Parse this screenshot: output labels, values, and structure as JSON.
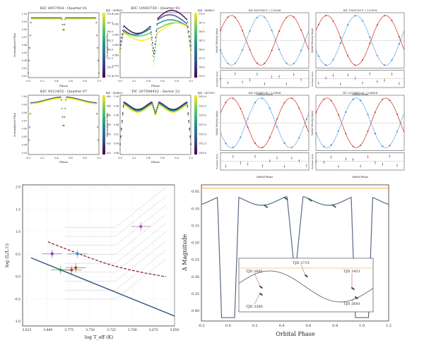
{
  "panels": {
    "lc1": {
      "title": "KIC 8957954 - Quarter 01",
      "ylabel": "Normalized Flux",
      "xlabel": "Phase",
      "cbar_label": "BJD - 2454833",
      "cbar_ticks": [
        "170.0",
        "167.5",
        "165.0",
        "162.5",
        "160.0",
        "157.5",
        "155.0",
        "152.5"
      ],
      "xticks": [
        "0.0",
        "0.2",
        "0.4",
        "0.6",
        "0.8",
        "1.0"
      ],
      "yticks": [
        "1.00",
        "0.99",
        "0.98",
        "0.97",
        "0.96",
        "0.95",
        "0.94",
        "0.93",
        "0.92"
      ]
    },
    "lc2": {
      "title": "KIC 10593759 - Quarter 01",
      "ylabel": "Normalized Flux",
      "xlabel": "Phase",
      "cbar_label": "BJD - 2454833",
      "cbar_ticks": [
        "170.0",
        "167.5",
        "165.0",
        "162.5",
        "160.0",
        "157.5",
        "155.0",
        "152.5"
      ],
      "xticks": [
        "0.0",
        "0.2",
        "0.4",
        "0.6",
        "0.8",
        "1.0"
      ],
      "yticks": [
        "1.000",
        "0.995",
        "0.990",
        "0.985",
        "0.980",
        "0.975",
        "0.970"
      ]
    },
    "lc3": {
      "title": "KIC 9312455 - Quarter 07",
      "ylabel": "Normalized Flux",
      "xlabel": "Phase",
      "cbar_label": "BJD - 2454833",
      "cbar_ticks": [
        "650",
        "645",
        "640",
        "635",
        "630",
        "625",
        "620"
      ],
      "xticks": [
        "0.0",
        "0.2",
        "0.4",
        "0.6",
        "0.8",
        "1.0"
      ],
      "yticks": [
        "1.00",
        "0.99",
        "0.98",
        "0.97",
        "0.96",
        "0.95",
        "0.94",
        "0.93"
      ]
    },
    "lc4": {
      "title": "TIC 207598432 - Sector 22",
      "ylabel": "Normalized Flux",
      "xlabel": "Phase",
      "cbar_label": "BJD - 2457000",
      "cbar_ticks": [
        "1925.0",
        "1922.5",
        "1920.0",
        "1917.5",
        "1915.0",
        "1912.5",
        "1910.0"
      ],
      "xticks": [
        "0.0",
        "0.2",
        "0.4",
        "0.6",
        "0.8",
        "1.0"
      ],
      "yticks": [
        "1.00",
        "0.98",
        "0.96",
        "0.94",
        "0.92",
        "0.90",
        "0.88"
      ]
    },
    "rv": {
      "titles": [
        "KIC 8957954  P = 1.5559d",
        "KIC 10593759  P = 1.0357d",
        "KIC 9312455  P = 1.2049d",
        "TIC 207598432  P = 0.8461d"
      ],
      "xlabel": "Orbital Phase",
      "ylabel_top": "Radial Velocity (km/s)",
      "ylabel_bot": "Residuals (km/s)"
    },
    "hr": {
      "xlabel": "log T_eff (K)",
      "ylabel": "log (L/L☉)",
      "xticks": [
        "3.825",
        "3.800",
        "3.775",
        "3.750",
        "3.725",
        "3.700",
        "3.675",
        "3.650"
      ],
      "yticks": [
        "2.0",
        "1.5",
        "1.0",
        "0.5",
        "0.0",
        "-0.5",
        "-1.0"
      ]
    },
    "om": {
      "xlabel": "Orbital Phase",
      "ylabel": "Δ Magnitude",
      "xticks": [
        "-0.2",
        "0.0",
        "0.2",
        "0.4",
        "0.6",
        "0.8",
        "1.0",
        "1.2"
      ],
      "yticks": [
        "0.05",
        "0.10",
        "0.15",
        "0.20",
        "0.25",
        "0.30",
        "0.35",
        "0.40"
      ],
      "inset_labels": [
        "TJD 2685",
        "TJD 2715",
        "TJD 3421",
        "TJD 3380",
        "TJD 2681"
      ]
    }
  },
  "chart_data": [
    {
      "type": "scatter",
      "title": "KIC 8957954 - Quarter 01",
      "xlabel": "Phase",
      "ylabel": "Normalized Flux",
      "xlim": [
        0,
        1
      ],
      "ylim": [
        0.92,
        1.005
      ],
      "description_series": "flat ~1.00 with primary eclipse near phase 0.0/1.0 (~0.92) and secondary eclipse at 0.5 (~0.985)"
    },
    {
      "type": "scatter",
      "title": "KIC 10593759 - Quarter 01",
      "xlabel": "Phase",
      "ylabel": "Normalized Flux",
      "xlim": [
        0,
        1
      ],
      "ylim": [
        0.968,
        1.002
      ]
    },
    {
      "type": "scatter",
      "title": "KIC 9312455 - Quarter 07",
      "xlabel": "Phase",
      "ylabel": "Normalized Flux",
      "xlim": [
        0,
        1
      ],
      "ylim": [
        0.93,
        1.005
      ]
    },
    {
      "type": "scatter",
      "title": "TIC 207598432 - Sector 22",
      "xlabel": "Phase",
      "ylabel": "Normalized Flux",
      "xlim": [
        0,
        1
      ],
      "ylim": [
        0.88,
        1.005
      ]
    },
    {
      "type": "line",
      "title": "HR diagram",
      "xlabel": "log T_eff (K)",
      "ylabel": "log (L/L☉)",
      "xlim": [
        3.83,
        3.65
      ],
      "ylim": [
        -1.1,
        2.05
      ],
      "points": [
        {
          "x": 3.69,
          "y": 1.12,
          "color": "#b04ab8"
        },
        {
          "x": 3.795,
          "y": 0.51,
          "color": "#7a3fb8"
        },
        {
          "x": 3.765,
          "y": 0.51,
          "color": "#3a8fd0"
        },
        {
          "x": 3.772,
          "y": 0.15,
          "color": "#c0392b"
        },
        {
          "x": 3.767,
          "y": 0.2,
          "color": "#7a5a2a"
        },
        {
          "x": 3.785,
          "y": 0.15,
          "color": "#2a9d4a"
        }
      ]
    },
    {
      "type": "line",
      "title": "Orbital light curve",
      "xlabel": "Orbital Phase",
      "ylabel": "Δ Magnitude",
      "xlim": [
        -0.2,
        1.2
      ],
      "ylim": [
        0.43,
        0.03
      ]
    }
  ]
}
